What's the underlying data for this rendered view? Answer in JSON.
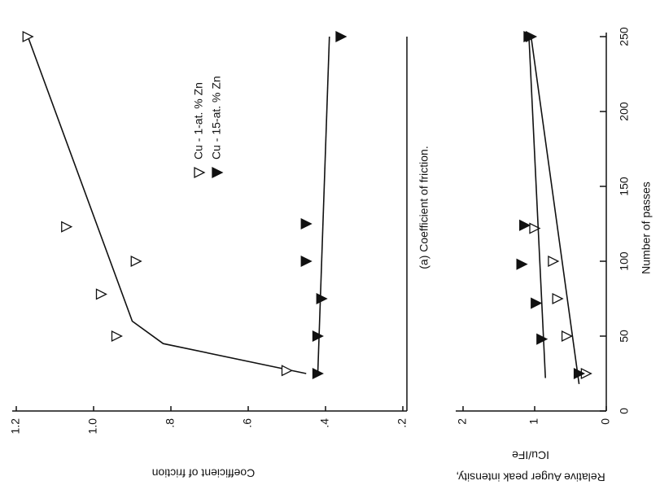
{
  "chart_data": [
    {
      "type": "scatter",
      "caption": "(a) Coefficient of friction.",
      "ylabel": "Coefficient of friction",
      "xlim": [
        0,
        250
      ],
      "ylim": [
        0.2,
        1.2
      ],
      "yticks": [
        {
          "value": 1.2,
          "label": "1.2"
        },
        {
          "value": 1.0,
          "label": "1.0"
        },
        {
          "value": 0.8,
          "label": ".8"
        },
        {
          "value": 0.6,
          "label": ".6"
        },
        {
          "value": 0.4,
          "label": ".4"
        },
        {
          "value": 0.2,
          "label": ".2"
        }
      ],
      "legend": "upper center",
      "series": [
        {
          "name": "Cu - 1-at. % Zn",
          "marker": "open",
          "color": "#111",
          "x": [
            27,
            50,
            78,
            100,
            123,
            250
          ],
          "values": [
            0.5,
            0.94,
            0.98,
            0.89,
            1.07,
            1.17
          ],
          "fit": {
            "x": [
              25,
              45,
              60,
              250
            ],
            "values": [
              0.45,
              0.82,
              0.9,
              1.17
            ]
          }
        },
        {
          "name": "Cu - 15-at. % Zn",
          "marker": "filled",
          "color": "#111",
          "x": [
            25,
            50,
            75,
            100,
            125,
            250
          ],
          "values": [
            0.42,
            0.42,
            0.41,
            0.45,
            0.45,
            0.36
          ],
          "fit": {
            "x": [
              25,
              250
            ],
            "values": [
              0.42,
              0.39
            ]
          }
        }
      ]
    },
    {
      "type": "scatter",
      "xlabel": "Number of passes",
      "ylabel": [
        "Relative Auger peak intensity,",
        "ICu/IFe"
      ],
      "xlim": [
        0,
        250
      ],
      "xticks": [
        0,
        50,
        100,
        150,
        200,
        250
      ],
      "ylim": [
        0,
        2
      ],
      "yticks": [
        2,
        1,
        0
      ],
      "series": [
        {
          "marker": "open",
          "color": "#111",
          "x": [
            25,
            50,
            75,
            100,
            122,
            250
          ],
          "values": [
            0.28,
            0.55,
            0.68,
            0.74,
            1.0,
            1.05
          ],
          "fit": {
            "x": [
              18,
              250
            ],
            "values": [
              0.38,
              1.05
            ]
          }
        },
        {
          "marker": "filled",
          "color": "#111",
          "x": [
            25,
            48,
            72,
            98,
            124,
            250
          ],
          "values": [
            0.38,
            0.9,
            0.98,
            1.18,
            1.14,
            1.08
          ],
          "fit": {
            "x": [
              22,
              250
            ],
            "values": [
              0.85,
              1.08
            ]
          }
        }
      ]
    }
  ]
}
